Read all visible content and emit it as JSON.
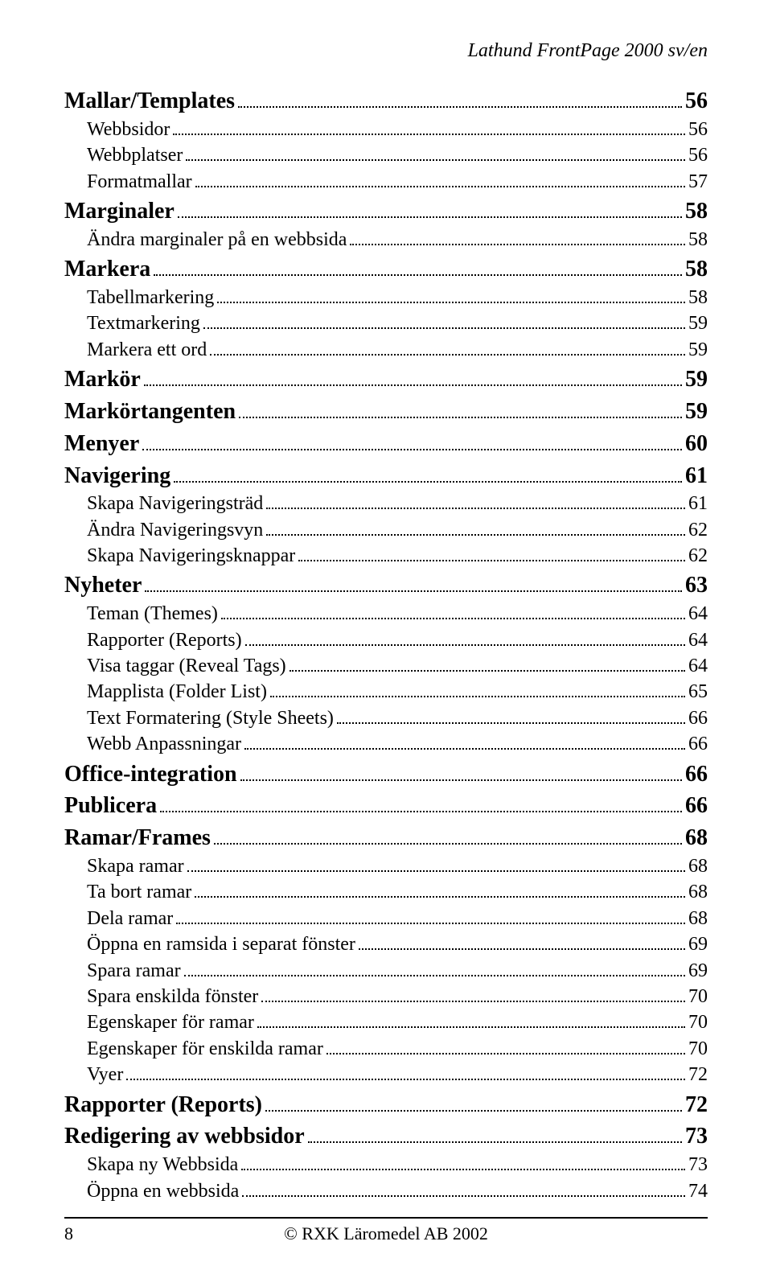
{
  "header": {
    "title": "Lathund FrontPage 2000 sv/en"
  },
  "toc": {
    "entries": [
      {
        "level": 1,
        "label": "Mallar/Templates",
        "page": "56"
      },
      {
        "level": 2,
        "label": "Webbsidor",
        "page": "56"
      },
      {
        "level": 2,
        "label": "Webbplatser",
        "page": "56"
      },
      {
        "level": 2,
        "label": "Formatmallar",
        "page": "57"
      },
      {
        "level": 1,
        "label": "Marginaler",
        "page": "58"
      },
      {
        "level": 2,
        "label": "Ändra marginaler på en webbsida",
        "page": "58"
      },
      {
        "level": 1,
        "label": "Markera",
        "page": "58"
      },
      {
        "level": 2,
        "label": "Tabellmarkering",
        "page": "58"
      },
      {
        "level": 2,
        "label": "Textmarkering",
        "page": "59"
      },
      {
        "level": 2,
        "label": "Markera ett ord",
        "page": "59"
      },
      {
        "level": 1,
        "label": "Markör",
        "page": "59"
      },
      {
        "level": 1,
        "label": "Markörtangenten",
        "page": "59"
      },
      {
        "level": 1,
        "label": "Menyer",
        "page": "60"
      },
      {
        "level": 1,
        "label": "Navigering",
        "page": "61"
      },
      {
        "level": 2,
        "label": "Skapa Navigeringsträd",
        "page": "61"
      },
      {
        "level": 2,
        "label": "Ändra Navigeringsvyn",
        "page": "62"
      },
      {
        "level": 2,
        "label": "Skapa Navigeringsknappar",
        "page": "62"
      },
      {
        "level": 1,
        "label": "Nyheter",
        "page": "63"
      },
      {
        "level": 2,
        "label": "Teman (Themes)",
        "page": "64"
      },
      {
        "level": 2,
        "label": "Rapporter (Reports)",
        "page": "64"
      },
      {
        "level": 2,
        "label": "Visa taggar (Reveal Tags)",
        "page": "64"
      },
      {
        "level": 2,
        "label": "Mapplista (Folder List)",
        "page": "65"
      },
      {
        "level": 2,
        "label": "Text Formatering (Style Sheets)",
        "page": "66"
      },
      {
        "level": 2,
        "label": "Webb  Anpassningar",
        "page": "66"
      },
      {
        "level": 1,
        "label": "Office-integration",
        "page": "66"
      },
      {
        "level": 1,
        "label": "Publicera",
        "page": "66"
      },
      {
        "level": 1,
        "label": "Ramar/Frames",
        "page": "68"
      },
      {
        "level": 2,
        "label": "Skapa ramar",
        "page": "68"
      },
      {
        "level": 2,
        "label": "Ta bort ramar",
        "page": "68"
      },
      {
        "level": 2,
        "label": "Dela ramar",
        "page": "68"
      },
      {
        "level": 2,
        "label": "Öppna en ramsida i separat fönster",
        "page": "69"
      },
      {
        "level": 2,
        "label": "Spara ramar",
        "page": "69"
      },
      {
        "level": 2,
        "label": "Spara enskilda fönster",
        "page": "70"
      },
      {
        "level": 2,
        "label": "Egenskaper för ramar",
        "page": "70"
      },
      {
        "level": 2,
        "label": "Egenskaper för enskilda ramar",
        "page": "70"
      },
      {
        "level": 2,
        "label": "Vyer",
        "page": "72"
      },
      {
        "level": 1,
        "label": "Rapporter (Reports)",
        "page": "72"
      },
      {
        "level": 1,
        "label": "Redigering av webbsidor",
        "page": "73"
      },
      {
        "level": 2,
        "label": "Skapa ny Webbsida",
        "page": "73"
      },
      {
        "level": 2,
        "label": "Öppna en webbsida",
        "page": "74"
      }
    ]
  },
  "footer": {
    "page_number": "8",
    "copyright": "© RXK Läromedel AB 2002"
  }
}
